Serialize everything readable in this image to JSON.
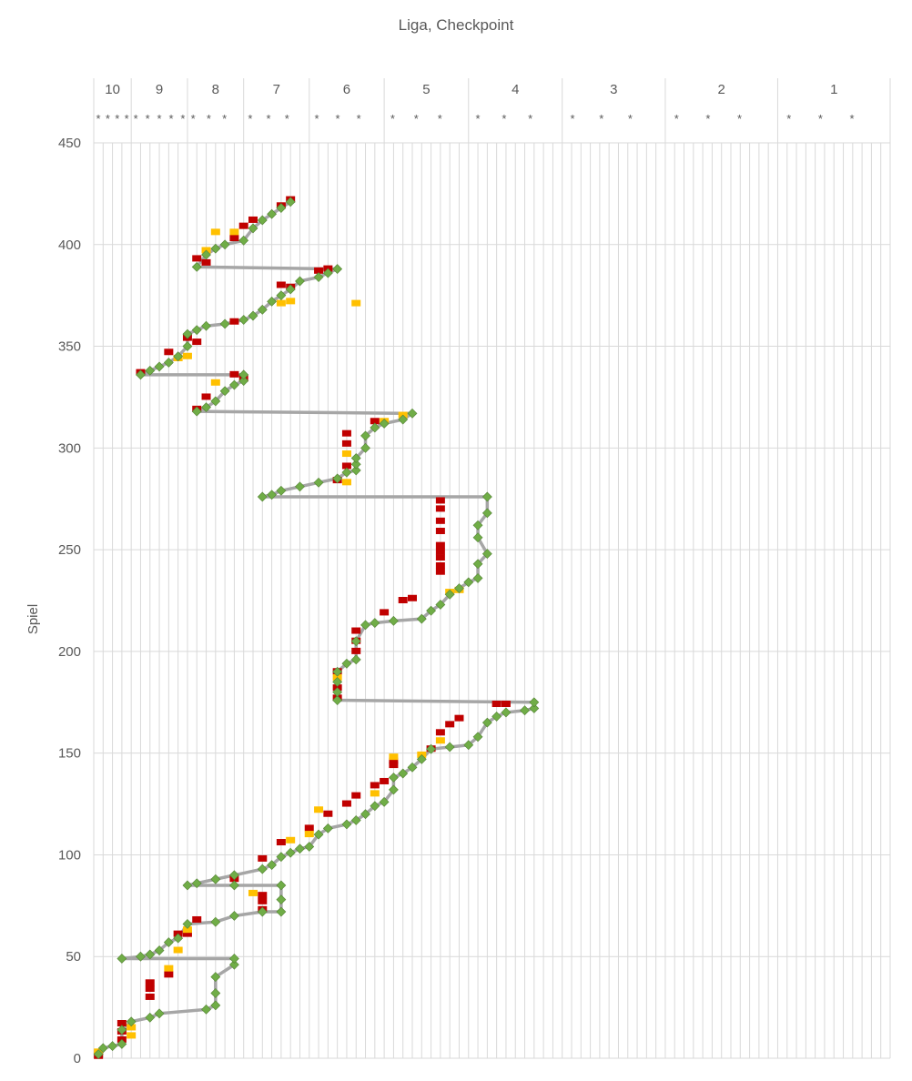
{
  "chart_data": {
    "type": "line",
    "title": "Liga, Checkpoint",
    "xlabel": "",
    "ylabel": "Spiel",
    "ylim": [
      0,
      450
    ],
    "yticks": [
      0,
      50,
      100,
      150,
      200,
      250,
      300,
      350,
      400,
      450
    ],
    "grid": true,
    "levels": [
      "10",
      "9",
      "8",
      "7",
      "6",
      "5",
      "4",
      "3",
      "2",
      "1"
    ],
    "checkpoint_marker": "*",
    "colors": {
      "path": "#a6a6a6",
      "marker": "#70ad47",
      "marker_edge": "#548235",
      "loss": "#c00000",
      "draw": "#ffc000",
      "grid": "#d9d9d9"
    },
    "series": [
      {
        "type": "path",
        "points": [
          [
            0.5,
            2
          ],
          [
            1,
            5
          ],
          [
            2,
            6
          ],
          [
            3,
            7
          ],
          [
            3,
            14
          ],
          [
            4,
            18
          ],
          [
            6,
            20
          ],
          [
            7,
            22
          ],
          [
            12,
            24
          ],
          [
            13,
            26
          ],
          [
            13,
            32
          ],
          [
            13,
            40
          ],
          [
            15,
            46
          ],
          [
            15,
            49
          ],
          [
            3,
            49
          ],
          [
            5,
            50
          ],
          [
            6,
            51
          ],
          [
            7,
            53
          ],
          [
            8,
            57
          ],
          [
            9,
            59
          ],
          [
            10,
            66
          ],
          [
            13,
            67
          ],
          [
            15,
            70
          ],
          [
            18,
            72
          ],
          [
            20,
            72
          ],
          [
            20,
            78
          ],
          [
            20,
            85
          ],
          [
            15,
            85
          ],
          [
            10,
            85
          ],
          [
            11,
            86
          ],
          [
            13,
            88
          ],
          [
            15,
            90
          ],
          [
            18,
            93
          ],
          [
            19,
            95
          ],
          [
            20,
            99
          ],
          [
            21,
            101
          ],
          [
            22,
            103
          ],
          [
            23,
            104
          ],
          [
            24,
            110
          ],
          [
            25,
            113
          ],
          [
            27,
            115
          ],
          [
            28,
            117
          ],
          [
            29,
            120
          ],
          [
            30,
            124
          ],
          [
            31,
            126
          ],
          [
            32,
            132
          ],
          [
            32,
            138
          ],
          [
            33,
            140
          ],
          [
            34,
            143
          ],
          [
            35,
            147
          ],
          [
            36,
            152
          ],
          [
            38,
            153
          ],
          [
            40,
            154
          ],
          [
            41,
            158
          ],
          [
            42,
            165
          ],
          [
            43,
            168
          ],
          [
            44,
            170
          ],
          [
            46,
            171
          ],
          [
            47,
            172
          ],
          [
            47,
            175
          ],
          [
            26,
            176
          ],
          [
            26,
            180
          ],
          [
            26,
            185
          ],
          [
            26,
            190
          ],
          [
            27,
            194
          ],
          [
            28,
            196
          ],
          [
            28,
            205
          ],
          [
            29,
            213
          ],
          [
            30,
            214
          ],
          [
            32,
            215
          ],
          [
            35,
            216
          ],
          [
            36,
            220
          ],
          [
            37,
            223
          ],
          [
            38,
            228
          ],
          [
            39,
            231
          ],
          [
            40,
            234
          ],
          [
            41,
            236
          ],
          [
            41,
            243
          ],
          [
            42,
            248
          ],
          [
            41,
            256
          ],
          [
            41,
            262
          ],
          [
            42,
            268
          ],
          [
            42,
            276
          ],
          [
            18,
            276
          ],
          [
            19,
            277
          ],
          [
            20,
            279
          ],
          [
            22,
            281
          ],
          [
            24,
            283
          ],
          [
            26,
            285
          ],
          [
            27,
            288
          ],
          [
            28,
            289
          ],
          [
            28,
            292
          ],
          [
            28,
            295
          ],
          [
            29,
            300
          ],
          [
            29,
            306
          ],
          [
            30,
            310
          ],
          [
            31,
            312
          ],
          [
            33,
            314
          ],
          [
            34,
            317
          ],
          [
            11,
            318
          ],
          [
            12,
            320
          ],
          [
            13,
            323
          ],
          [
            14,
            328
          ],
          [
            15,
            331
          ],
          [
            16,
            333
          ],
          [
            16,
            336
          ],
          [
            5,
            336
          ],
          [
            6,
            338
          ],
          [
            7,
            340
          ],
          [
            8,
            342
          ],
          [
            9,
            345
          ],
          [
            10,
            350
          ],
          [
            10,
            356
          ],
          [
            11,
            358
          ],
          [
            12,
            360
          ],
          [
            14,
            361
          ],
          [
            16,
            363
          ],
          [
            17,
            365
          ],
          [
            18,
            368
          ],
          [
            19,
            372
          ],
          [
            20,
            375
          ],
          [
            21,
            378
          ],
          [
            22,
            382
          ],
          [
            24,
            384
          ],
          [
            25,
            386
          ],
          [
            26,
            388
          ],
          [
            11,
            389
          ],
          [
            12,
            395
          ],
          [
            13,
            398
          ],
          [
            14,
            400
          ],
          [
            16,
            402
          ],
          [
            17,
            408
          ],
          [
            18,
            412
          ],
          [
            19,
            415
          ],
          [
            20,
            418
          ],
          [
            21,
            421
          ]
        ]
      },
      {
        "type": "draw",
        "points": [
          [
            0.5,
            3
          ],
          [
            4,
            11
          ],
          [
            4,
            15
          ],
          [
            8,
            44
          ],
          [
            9,
            53
          ],
          [
            10,
            63
          ],
          [
            17,
            81
          ],
          [
            21,
            107
          ],
          [
            23,
            110
          ],
          [
            24,
            122
          ],
          [
            30,
            130
          ],
          [
            32,
            148
          ],
          [
            35,
            149
          ],
          [
            37,
            156
          ],
          [
            38,
            229
          ],
          [
            39,
            230
          ],
          [
            20,
            371
          ],
          [
            21,
            372
          ],
          [
            15,
            406
          ],
          [
            13,
            406
          ],
          [
            12,
            397
          ],
          [
            10,
            345
          ],
          [
            9,
            344
          ],
          [
            27,
            297
          ],
          [
            33,
            316
          ],
          [
            31,
            313
          ],
          [
            13,
            332
          ],
          [
            28,
            371
          ],
          [
            27,
            283
          ],
          [
            26,
            187
          ]
        ]
      },
      {
        "type": "loss",
        "points": [
          [
            0.5,
            1
          ],
          [
            3,
            9
          ],
          [
            3,
            13
          ],
          [
            3,
            17
          ],
          [
            6,
            37
          ],
          [
            6,
            34
          ],
          [
            6,
            30
          ],
          [
            8,
            41
          ],
          [
            9,
            61
          ],
          [
            10,
            61
          ],
          [
            11,
            68
          ],
          [
            15,
            88
          ],
          [
            18,
            73
          ],
          [
            18,
            77
          ],
          [
            18,
            80
          ],
          [
            18,
            98
          ],
          [
            20,
            106
          ],
          [
            23,
            113
          ],
          [
            25,
            120
          ],
          [
            27,
            125
          ],
          [
            28,
            129
          ],
          [
            30,
            134
          ],
          [
            31,
            136
          ],
          [
            32,
            144
          ],
          [
            32,
            146
          ],
          [
            36,
            152
          ],
          [
            37,
            160
          ],
          [
            38,
            164
          ],
          [
            39,
            167
          ],
          [
            43,
            174
          ],
          [
            44,
            174
          ],
          [
            26,
            177
          ],
          [
            26,
            182
          ],
          [
            26,
            190
          ],
          [
            28,
            200
          ],
          [
            28,
            205
          ],
          [
            28,
            210
          ],
          [
            31,
            219
          ],
          [
            33,
            225
          ],
          [
            34,
            226
          ],
          [
            37,
            242
          ],
          [
            37,
            246
          ],
          [
            37,
            249
          ],
          [
            37,
            252
          ],
          [
            37,
            259
          ],
          [
            37,
            264
          ],
          [
            37,
            270
          ],
          [
            37,
            274
          ],
          [
            37,
            239
          ],
          [
            26,
            284
          ],
          [
            27,
            291
          ],
          [
            27,
            302
          ],
          [
            27,
            307
          ],
          [
            30,
            313
          ],
          [
            16,
            334
          ],
          [
            15,
            336
          ],
          [
            11,
            319
          ],
          [
            12,
            325
          ],
          [
            5,
            337
          ],
          [
            8,
            347
          ],
          [
            10,
            354
          ],
          [
            11,
            352
          ],
          [
            15,
            362
          ],
          [
            20,
            380
          ],
          [
            21,
            379
          ],
          [
            24,
            387
          ],
          [
            25,
            388
          ],
          [
            12,
            391
          ],
          [
            11,
            393
          ],
          [
            15,
            403
          ],
          [
            16,
            409
          ],
          [
            17,
            412
          ],
          [
            20,
            419
          ],
          [
            21,
            422
          ]
        ]
      }
    ]
  }
}
